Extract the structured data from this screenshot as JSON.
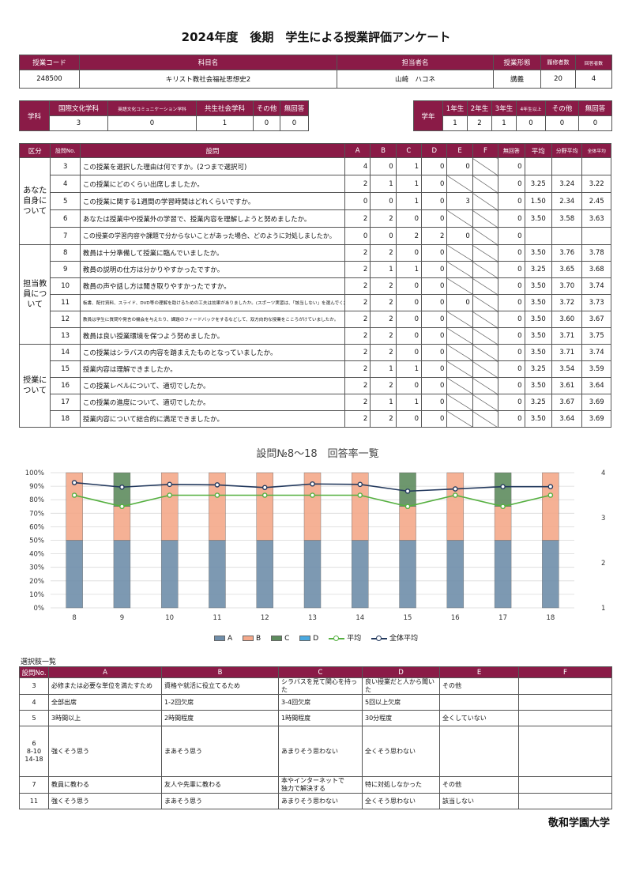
{
  "title": "2024年度　後期　学生による授業評価アンケート",
  "course": {
    "headers": [
      "授業コード",
      "科目名",
      "担当者名",
      "授業形態",
      "履修者数",
      "回答者数"
    ],
    "values": [
      "248500",
      "キリスト教社会福祉思想史2",
      "山崎　ハコネ",
      "講義",
      "20",
      "4"
    ]
  },
  "dept": {
    "label": "学科",
    "headers": [
      "国際文化学科",
      "英語文化コミュニケーション学科",
      "共生社会学科",
      "その他",
      "無回答"
    ],
    "values": [
      "3",
      "0",
      "1",
      "0",
      "0"
    ]
  },
  "year": {
    "label": "学年",
    "headers": [
      "1年生",
      "2年生",
      "3年生",
      "4年生以上",
      "その他",
      "無回答"
    ],
    "values": [
      "1",
      "2",
      "1",
      "0",
      "0",
      "0"
    ]
  },
  "questions": {
    "headers": [
      "区分",
      "設問No.",
      "設問",
      "A",
      "B",
      "C",
      "D",
      "E",
      "F",
      "無回答",
      "平均",
      "分野平均",
      "全体平均"
    ],
    "sections": [
      "あなた自身について",
      "担当教員について",
      "授業について"
    ],
    "rows": [
      {
        "no": "3",
        "text": "この授業を選択した理由は何ですか。(2つまで選択可)",
        "a": "4",
        "b": "0",
        "c": "1",
        "d": "0",
        "e": "0",
        "f": "",
        "na": "0",
        "avg": "",
        "field": "",
        "all": ""
      },
      {
        "no": "4",
        "text": "この授業にどのくらい出席しましたか。",
        "a": "2",
        "b": "1",
        "c": "1",
        "d": "0",
        "e": "",
        "f": "",
        "na": "0",
        "avg": "3.25",
        "field": "3.24",
        "all": "3.22"
      },
      {
        "no": "5",
        "text": "この授業に関する1週間の学習時間はどれくらいですか。",
        "a": "0",
        "b": "0",
        "c": "1",
        "d": "0",
        "e": "3",
        "f": "",
        "na": "0",
        "avg": "1.50",
        "field": "2.34",
        "all": "2.45"
      },
      {
        "no": "6",
        "text": "あなたは授業中や授業外の学習で、授業内容を理解しようと努めましたか。",
        "a": "2",
        "b": "2",
        "c": "0",
        "d": "0",
        "e": "",
        "f": "",
        "na": "0",
        "avg": "3.50",
        "field": "3.58",
        "all": "3.63"
      },
      {
        "no": "7",
        "text": "この授業の学習内容や課題で分からないことがあった場合、どのように対処しましたか。",
        "a": "0",
        "b": "0",
        "c": "2",
        "d": "2",
        "e": "0",
        "f": "",
        "na": "0",
        "avg": "",
        "field": "",
        "all": ""
      },
      {
        "no": "8",
        "text": "教員は十分準備して授業に臨んでいましたか。",
        "a": "2",
        "b": "2",
        "c": "0",
        "d": "0",
        "e": "",
        "f": "",
        "na": "0",
        "avg": "3.50",
        "field": "3.76",
        "all": "3.78"
      },
      {
        "no": "9",
        "text": "教員の説明の仕方は分かりやすかったですか。",
        "a": "2",
        "b": "1",
        "c": "1",
        "d": "0",
        "e": "",
        "f": "",
        "na": "0",
        "avg": "3.25",
        "field": "3.65",
        "all": "3.68"
      },
      {
        "no": "10",
        "text": "教員の声や話し方は聞き取りやすかったですか。",
        "a": "2",
        "b": "2",
        "c": "0",
        "d": "0",
        "e": "",
        "f": "",
        "na": "0",
        "avg": "3.50",
        "field": "3.70",
        "all": "3.74"
      },
      {
        "no": "11",
        "text": "板書、配付資料、スライド、DVD等の理解を助けるための工夫は効果がありましたか。(スポーツ実習は、「該当しない」を選んでください)",
        "a": "2",
        "b": "2",
        "c": "0",
        "d": "0",
        "e": "0",
        "f": "",
        "na": "0",
        "avg": "3.50",
        "field": "3.72",
        "all": "3.73"
      },
      {
        "no": "12",
        "text": "教員は学生に質問や発言の機会を与えたり、課題のフィードバックをするなどして、双方向的な授業をこころがけていましたか。",
        "a": "2",
        "b": "2",
        "c": "0",
        "d": "0",
        "e": "",
        "f": "",
        "na": "0",
        "avg": "3.50",
        "field": "3.60",
        "all": "3.67"
      },
      {
        "no": "13",
        "text": "教員は良い授業環境を保つよう努めましたか。",
        "a": "2",
        "b": "2",
        "c": "0",
        "d": "0",
        "e": "",
        "f": "",
        "na": "0",
        "avg": "3.50",
        "field": "3.71",
        "all": "3.75"
      },
      {
        "no": "14",
        "text": "この授業はシラバスの内容を踏まえたものとなっていましたか。",
        "a": "2",
        "b": "2",
        "c": "0",
        "d": "0",
        "e": "",
        "f": "",
        "na": "0",
        "avg": "3.50",
        "field": "3.71",
        "all": "3.74"
      },
      {
        "no": "15",
        "text": "授業内容は理解できましたか。",
        "a": "2",
        "b": "1",
        "c": "1",
        "d": "0",
        "e": "",
        "f": "",
        "na": "0",
        "avg": "3.25",
        "field": "3.54",
        "all": "3.59"
      },
      {
        "no": "16",
        "text": "この授業レベルについて、適切でしたか。",
        "a": "2",
        "b": "2",
        "c": "0",
        "d": "0",
        "e": "",
        "f": "",
        "na": "0",
        "avg": "3.50",
        "field": "3.61",
        "all": "3.64"
      },
      {
        "no": "17",
        "text": "この授業の進度について、適切でしたか。",
        "a": "2",
        "b": "1",
        "c": "1",
        "d": "0",
        "e": "",
        "f": "",
        "na": "0",
        "avg": "3.25",
        "field": "3.67",
        "all": "3.69"
      },
      {
        "no": "18",
        "text": "授業内容について総合的に満足できましたか。",
        "a": "2",
        "b": "2",
        "c": "0",
        "d": "0",
        "e": "",
        "f": "",
        "na": "0",
        "avg": "3.50",
        "field": "3.64",
        "all": "3.69"
      }
    ]
  },
  "chart_data": {
    "type": "bar",
    "title": "設問№8～18　回答率一覧",
    "categories": [
      "8",
      "9",
      "10",
      "11",
      "12",
      "13",
      "14",
      "15",
      "16",
      "17",
      "18"
    ],
    "series": [
      {
        "name": "A",
        "values": [
          50,
          50,
          50,
          50,
          50,
          50,
          50,
          50,
          50,
          50,
          50
        ],
        "color": "#6f8eaa"
      },
      {
        "name": "B",
        "values": [
          50,
          25,
          50,
          50,
          50,
          50,
          50,
          25,
          50,
          25,
          50
        ],
        "color": "#f4a88a"
      },
      {
        "name": "C",
        "values": [
          0,
          25,
          0,
          0,
          0,
          0,
          0,
          25,
          0,
          25,
          0
        ],
        "color": "#5e8c5e"
      },
      {
        "name": "D",
        "values": [
          0,
          0,
          0,
          0,
          0,
          0,
          0,
          0,
          0,
          0,
          0
        ],
        "color": "#4aa9e0"
      },
      {
        "name": "平均",
        "values": [
          3.5,
          3.25,
          3.5,
          3.5,
          3.5,
          3.5,
          3.5,
          3.25,
          3.5,
          3.25,
          3.5
        ],
        "color": "#55b040",
        "axis": "right"
      },
      {
        "name": "全体平均",
        "values": [
          3.78,
          3.68,
          3.74,
          3.73,
          3.67,
          3.75,
          3.74,
          3.59,
          3.64,
          3.69,
          3.69
        ],
        "color": "#243a5e",
        "axis": "right"
      }
    ],
    "ylim": [
      0,
      100
    ],
    "y_ticks": [
      "0%",
      "10%",
      "20%",
      "30%",
      "40%",
      "50%",
      "60%",
      "70%",
      "80%",
      "90%",
      "100%"
    ],
    "y2lim": [
      1,
      4
    ],
    "y2_ticks": [
      "1",
      "2",
      "3",
      "4"
    ],
    "grid": true,
    "legend": "bottom"
  },
  "choices": {
    "title": "選択肢一覧",
    "headers": [
      "設問No.",
      "A",
      "B",
      "C",
      "D",
      "E",
      "F"
    ],
    "rows": [
      {
        "no": "3",
        "a": "必修または必要な単位を満たすため",
        "b": "資格や就活に役立てるため",
        "c": "シラバスを見て関心を持った",
        "d": "良い授業だと人から聞いた",
        "e": "その他",
        "f": ""
      },
      {
        "no": "4",
        "a": "全部出席",
        "b": "1-2回欠席",
        "c": "3-4回欠席",
        "d": "5回以上欠席",
        "e": "",
        "f": ""
      },
      {
        "no": "5",
        "a": "3時間以上",
        "b": "2時間程度",
        "c": "1時間程度",
        "d": "30分程度",
        "e": "全くしていない",
        "f": ""
      },
      {
        "no": "6\n8-10\n14-18",
        "a": "強くそう思う",
        "b": "まあそう思う",
        "c": "あまりそう思わない",
        "d": "全くそう思わない",
        "e": "",
        "f": ""
      },
      {
        "no": "7",
        "a": "教員に教わる",
        "b": "友人や先輩に教わる",
        "c": "本やインターネットで\n独力で解決する",
        "d": "特に対処しなかった",
        "e": "その他",
        "f": ""
      },
      {
        "no": "11",
        "a": "強くそう思う",
        "b": "まあそう思う",
        "c": "あまりそう思わない",
        "d": "全くそう思わない",
        "e": "該当しない",
        "f": ""
      }
    ]
  },
  "university": "敬和学園大学",
  "colors": {
    "header": "#8a1b47"
  }
}
